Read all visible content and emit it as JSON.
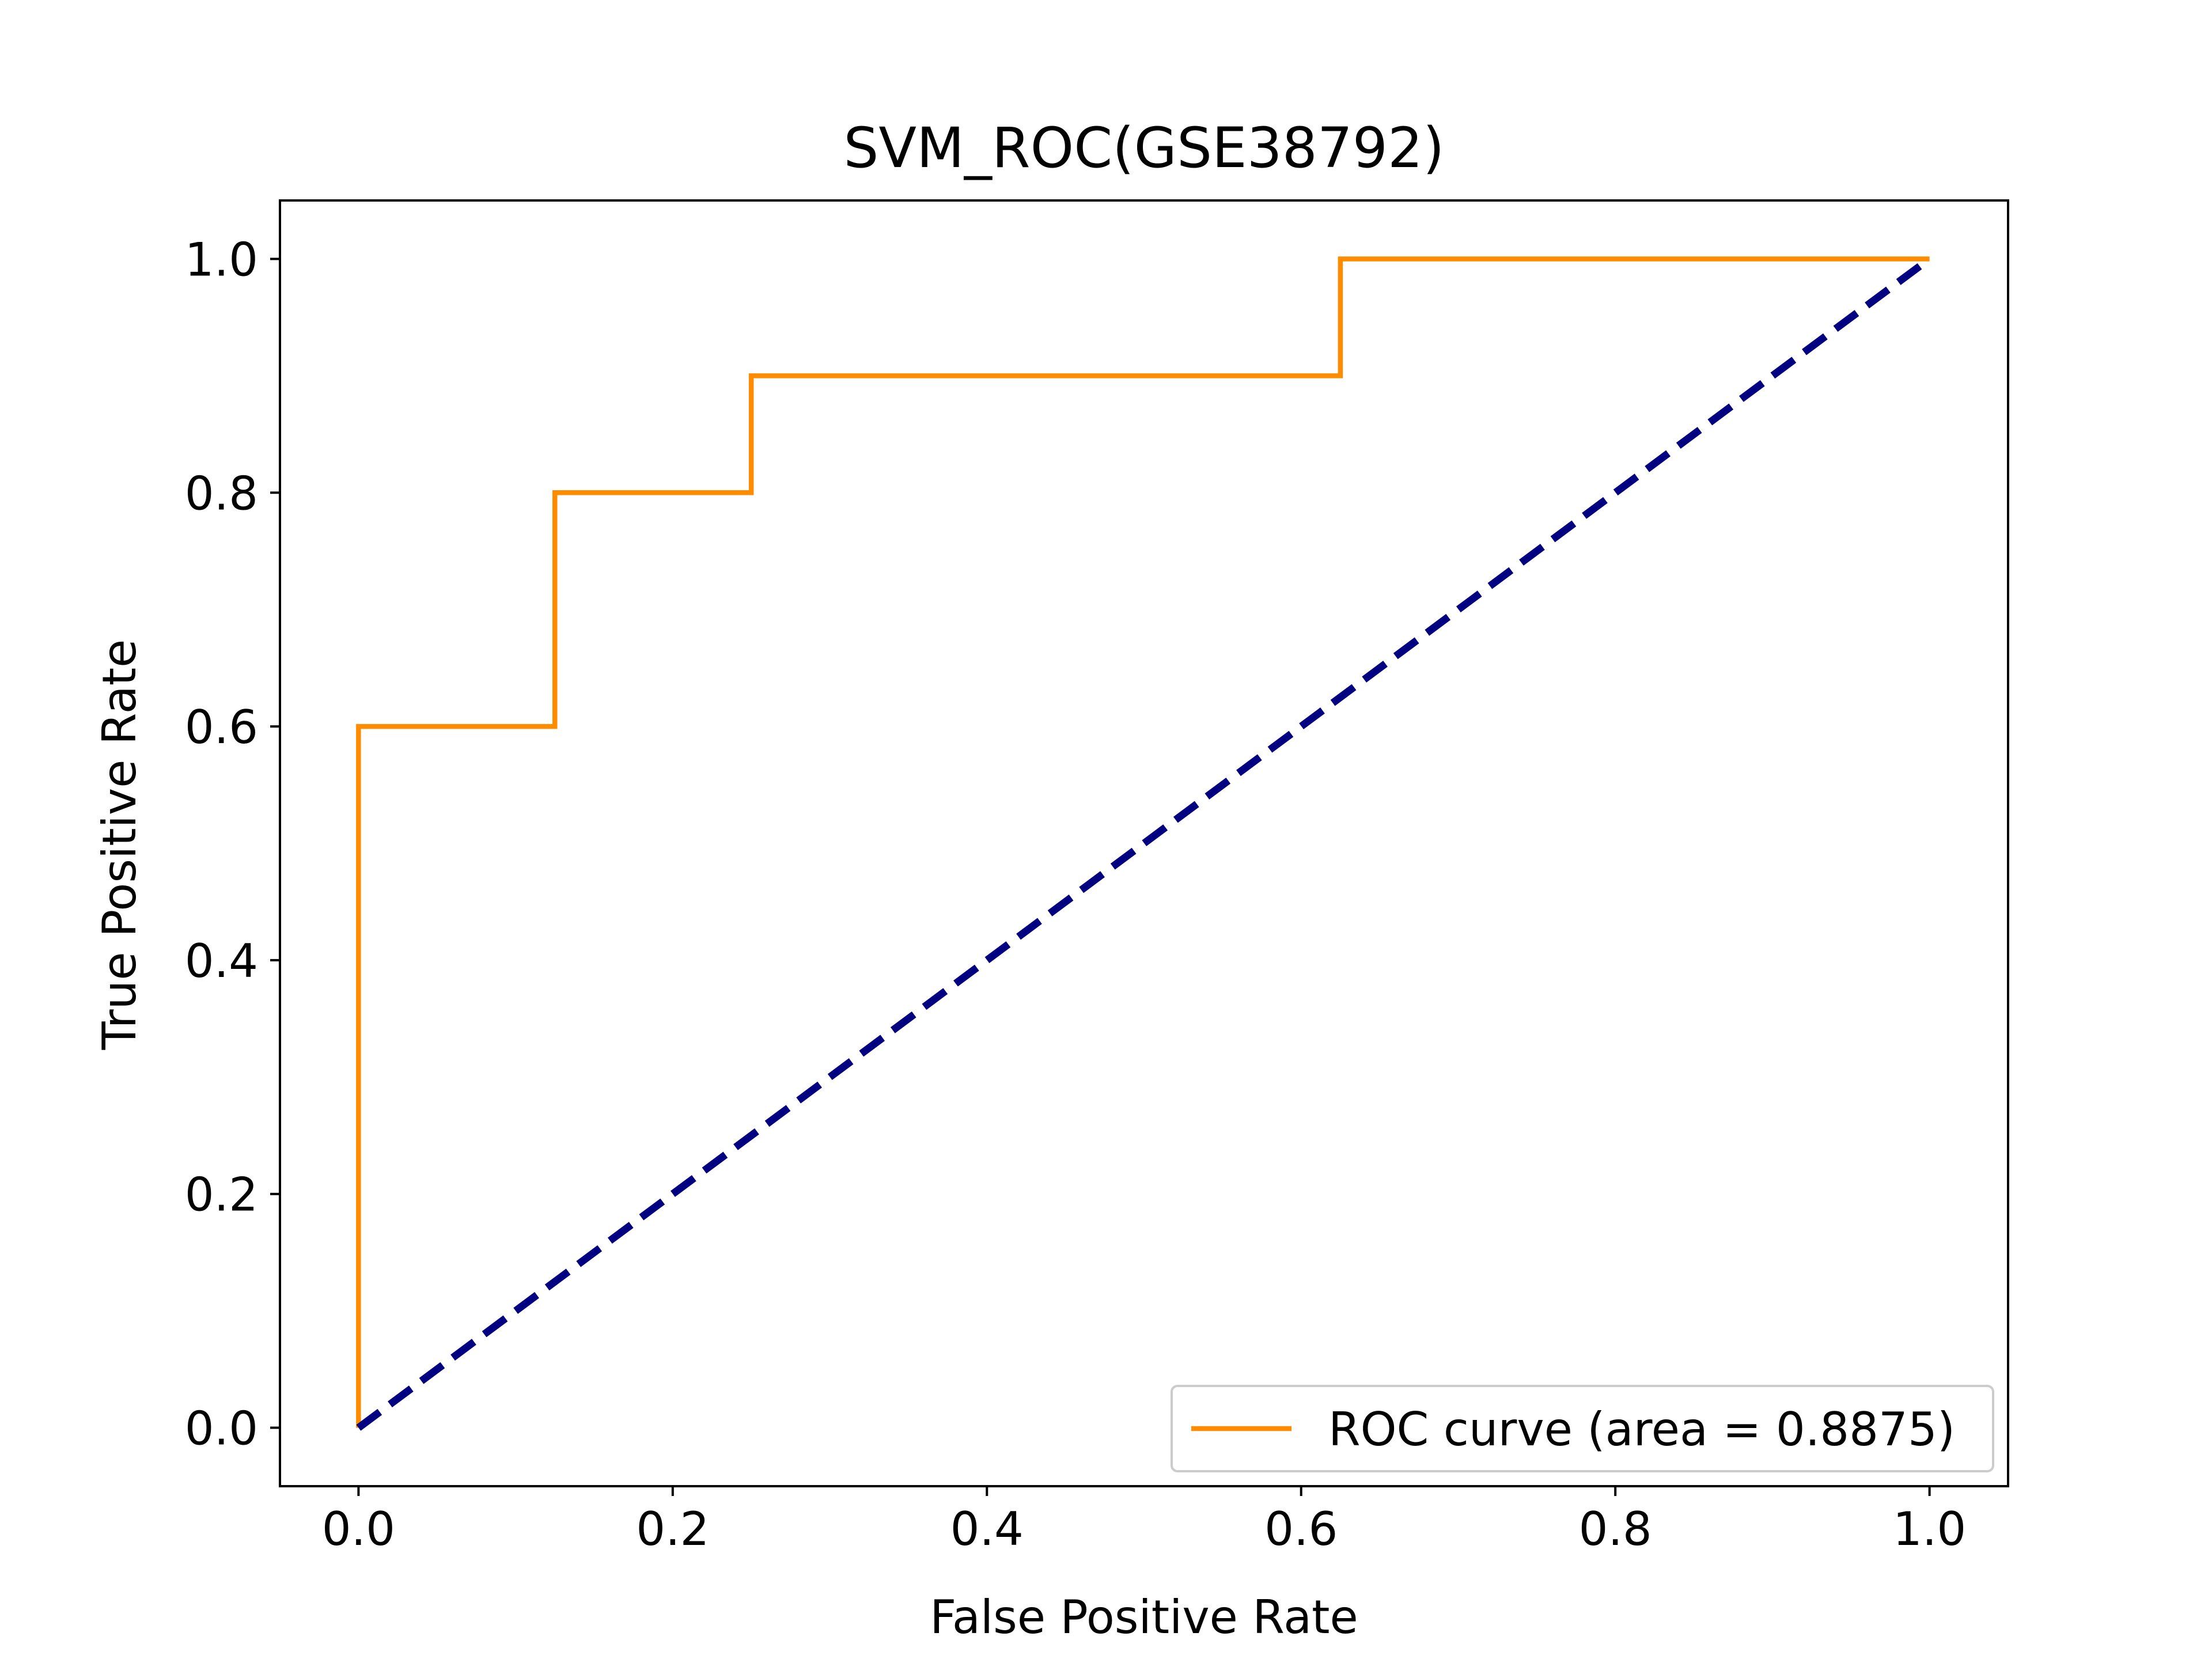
{
  "chart_data": {
    "type": "line",
    "title": "SVM_ROC(GSE38792)",
    "xlabel": "False Positive Rate",
    "ylabel": "True Positive Rate",
    "xlim": [
      -0.05,
      1.05
    ],
    "ylim": [
      -0.05,
      1.05
    ],
    "xticks": [
      0.0,
      0.2,
      0.4,
      0.6,
      0.8,
      1.0
    ],
    "yticks": [
      0.0,
      0.2,
      0.4,
      0.6,
      0.8,
      1.0
    ],
    "xtick_labels": [
      "0.0",
      "0.2",
      "0.4",
      "0.6",
      "0.8",
      "1.0"
    ],
    "ytick_labels": [
      "0.0",
      "0.2",
      "0.4",
      "0.6",
      "0.8",
      "1.0"
    ],
    "grid": false,
    "legend_position": "lower-right",
    "series": [
      {
        "name": "ROC curve (area = 0.8875)",
        "color": "#ff8c00",
        "style": "solid",
        "x": [
          0.0,
          0.0,
          0.125,
          0.125,
          0.25,
          0.25,
          0.625,
          0.625,
          1.0
        ],
        "y": [
          0.0,
          0.6,
          0.6,
          0.8,
          0.8,
          0.9,
          0.9,
          1.0,
          1.0
        ]
      },
      {
        "color": "#000080",
        "style": "dashed",
        "x": [
          0.0,
          1.0
        ],
        "y": [
          0.0,
          1.0
        ]
      }
    ]
  }
}
